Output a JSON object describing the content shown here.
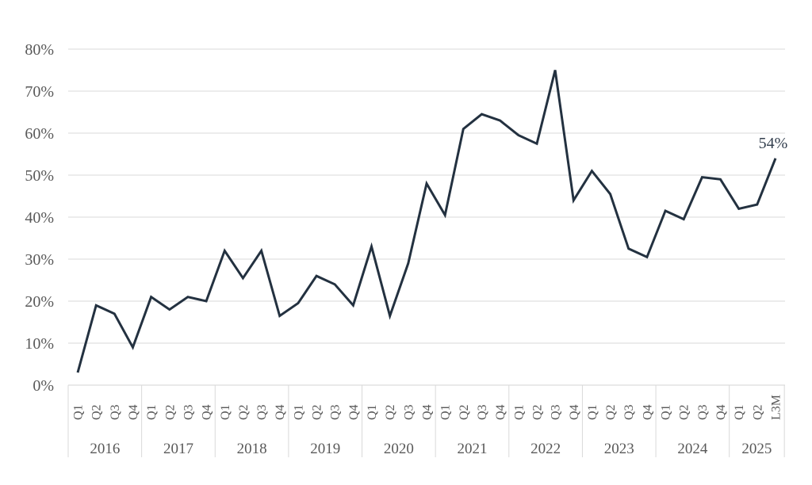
{
  "chart_data": {
    "type": "line",
    "title": "",
    "xlabel": "",
    "ylabel": "",
    "ylim": [
      0,
      80
    ],
    "grid": true,
    "legend_position": "none",
    "y_tick_labels": [
      "0%",
      "10%",
      "20%",
      "30%",
      "40%",
      "50%",
      "60%",
      "70%",
      "80%"
    ],
    "x_labels": [
      "Q1",
      "Q2",
      "Q3",
      "Q4",
      "Q1",
      "Q2",
      "Q3",
      "Q4",
      "Q1",
      "Q2",
      "Q3",
      "Q4",
      "Q1",
      "Q2",
      "Q3",
      "Q4",
      "Q1",
      "Q2",
      "Q3",
      "Q4",
      "Q1",
      "Q2",
      "Q3",
      "Q4",
      "Q1",
      "Q2",
      "Q3",
      "Q4",
      "Q1",
      "Q2",
      "Q3",
      "Q4",
      "Q1",
      "Q2",
      "Q3",
      "Q4",
      "Q1",
      "Q2",
      "L3M"
    ],
    "year_groups": [
      {
        "label": "2016",
        "count": 4
      },
      {
        "label": "2017",
        "count": 4
      },
      {
        "label": "2018",
        "count": 4
      },
      {
        "label": "2019",
        "count": 4
      },
      {
        "label": "2020",
        "count": 4
      },
      {
        "label": "2021",
        "count": 4
      },
      {
        "label": "2022",
        "count": 4
      },
      {
        "label": "2023",
        "count": 4
      },
      {
        "label": "2024",
        "count": 4
      },
      {
        "label": "2025",
        "count": 3
      }
    ],
    "values": [
      3,
      19,
      17,
      9,
      21,
      18,
      21,
      20,
      32,
      25.5,
      32,
      16.5,
      19.5,
      26,
      24,
      19,
      33,
      16.5,
      29,
      48,
      40.5,
      61,
      64.5,
      63,
      59.5,
      57.5,
      75,
      44,
      51,
      45.5,
      32.5,
      30.5,
      41.5,
      39.5,
      49.5,
      49,
      42,
      43,
      54
    ],
    "annotation": {
      "text": "54%",
      "point_index": 38
    },
    "colors": {
      "line": "#233140",
      "grid": "#d9d9d9",
      "axis_line": "#d3d3d3",
      "tick_label": "#595959",
      "annotation": "#333f4e",
      "background": "#ffffff"
    }
  }
}
